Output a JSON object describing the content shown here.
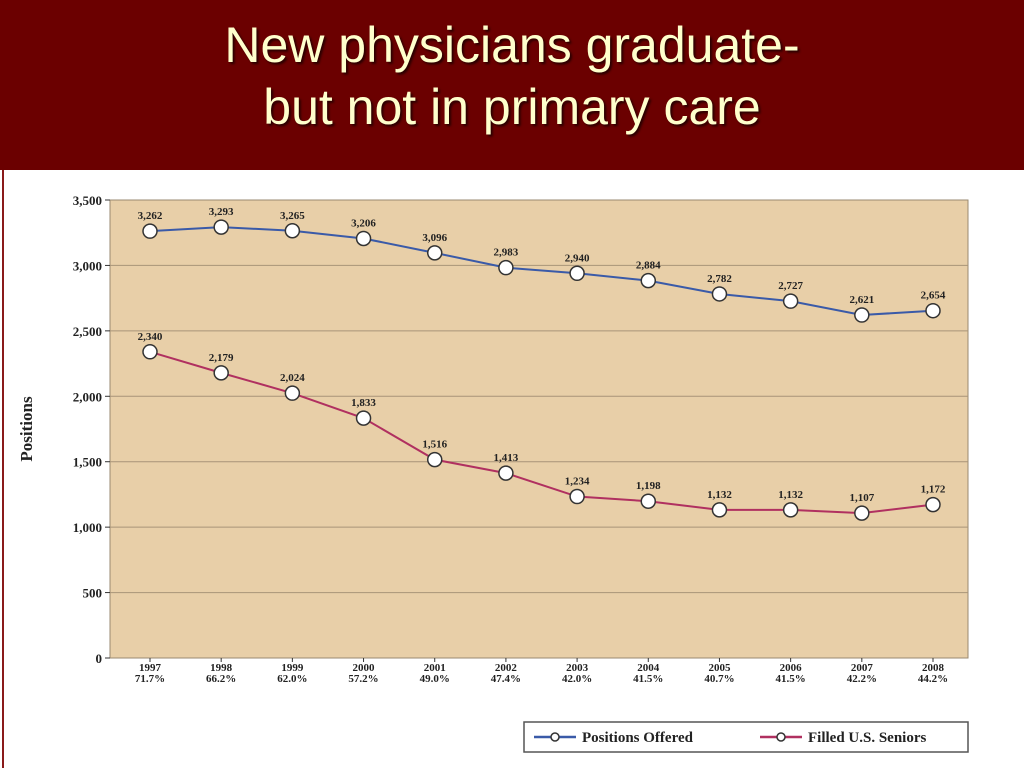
{
  "slide": {
    "title_line1": "New physicians graduate-",
    "title_line2": "but not in primary care",
    "header_color": "#6b0000",
    "title_color": "#ffffcc"
  },
  "chart_data": {
    "type": "line",
    "ylabel": "Positions",
    "ylim": [
      0,
      3500
    ],
    "yticks": [
      0,
      500,
      1000,
      1500,
      2000,
      2500,
      3000,
      3500
    ],
    "ytick_labels": [
      "0",
      "500",
      "1,000",
      "1,500",
      "2,000",
      "2,500",
      "3,000",
      "3,500"
    ],
    "grid": true,
    "plot_background": "#e8cfa8",
    "legend_position": "bottom-right",
    "categories": [
      "1997",
      "1998",
      "1999",
      "2000",
      "2001",
      "2002",
      "2003",
      "2004",
      "2005",
      "2006",
      "2007",
      "2008"
    ],
    "category_sublabels": [
      "71.7%",
      "66.2%",
      "62.0%",
      "57.2%",
      "49.0%",
      "47.4%",
      "42.0%",
      "41.5%",
      "40.7%",
      "41.5%",
      "42.2%",
      "44.2%"
    ],
    "series": [
      {
        "name": "Positions Offered",
        "color": "#3a5aa8",
        "values": [
          3262,
          3293,
          3265,
          3206,
          3096,
          2983,
          2940,
          2884,
          2782,
          2727,
          2621,
          2654
        ],
        "labels": [
          "3,262",
          "3,293",
          "3,265",
          "3,206",
          "3,096",
          "2,983",
          "2,940",
          "2,884",
          "2,782",
          "2,727",
          "2,621",
          "2,654"
        ]
      },
      {
        "name": "Filled U.S. Seniors",
        "color": "#b03060",
        "values": [
          2340,
          2179,
          2024,
          1833,
          1516,
          1413,
          1234,
          1198,
          1132,
          1132,
          1107,
          1172
        ],
        "labels": [
          "2,340",
          "2,179",
          "2,024",
          "1,833",
          "1,516",
          "1,413",
          "1,234",
          "1,198",
          "1,132",
          "1,132",
          "1,107",
          "1,172"
        ]
      }
    ]
  }
}
